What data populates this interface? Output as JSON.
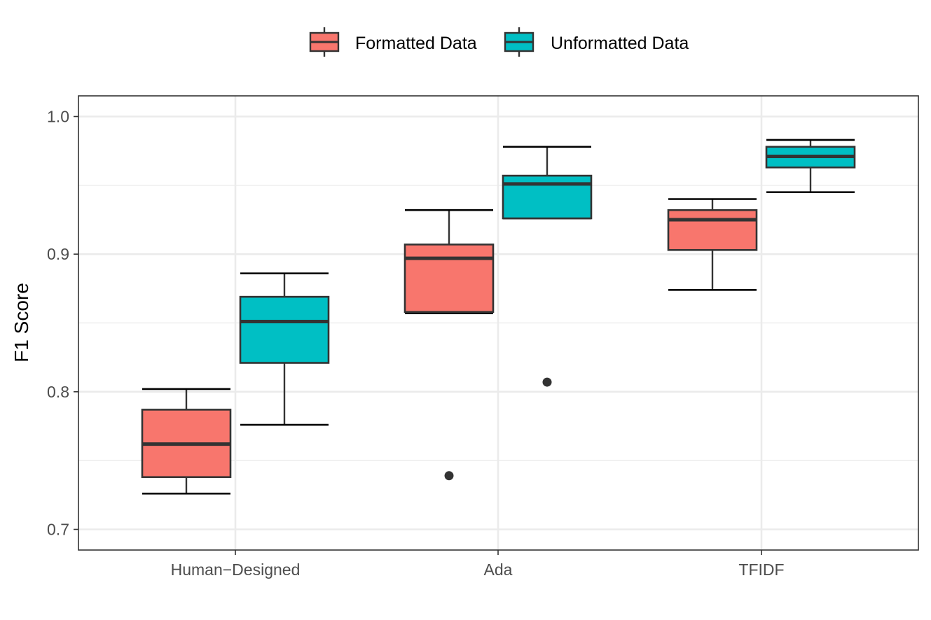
{
  "chart_data": {
    "type": "boxplot",
    "title": "",
    "xlabel": "",
    "ylabel": "F1 Score",
    "ylim": [
      0.685,
      1.015
    ],
    "yticks": [
      0.7,
      0.8,
      0.9,
      1.0
    ],
    "ytick_labels": [
      "0.7",
      "0.8",
      "0.9",
      "1.0"
    ],
    "categories": [
      "Human−Designed",
      "Ada",
      "TFIDF"
    ],
    "legend_position": "top",
    "grid": true,
    "series": [
      {
        "name": "Formatted Data",
        "color": "#F8766D",
        "boxes": [
          {
            "whisker_low": 0.726,
            "q1": 0.738,
            "median": 0.762,
            "q3": 0.787,
            "whisker_high": 0.802,
            "outliers": []
          },
          {
            "whisker_low": 0.857,
            "q1": 0.858,
            "median": 0.897,
            "q3": 0.907,
            "whisker_high": 0.932,
            "outliers": [
              0.739
            ]
          },
          {
            "whisker_low": 0.874,
            "q1": 0.903,
            "median": 0.925,
            "q3": 0.932,
            "whisker_high": 0.94,
            "outliers": []
          }
        ]
      },
      {
        "name": "Unformatted Data",
        "color": "#00BFC4",
        "boxes": [
          {
            "whisker_low": 0.776,
            "q1": 0.821,
            "median": 0.851,
            "q3": 0.869,
            "whisker_high": 0.886,
            "outliers": []
          },
          {
            "whisker_low": 0.926,
            "q1": 0.926,
            "median": 0.951,
            "q3": 0.957,
            "whisker_high": 0.978,
            "outliers": [
              0.807
            ]
          },
          {
            "whisker_low": 0.945,
            "q1": 0.963,
            "median": 0.971,
            "q3": 0.978,
            "whisker_high": 0.983,
            "outliers": []
          }
        ]
      }
    ]
  }
}
